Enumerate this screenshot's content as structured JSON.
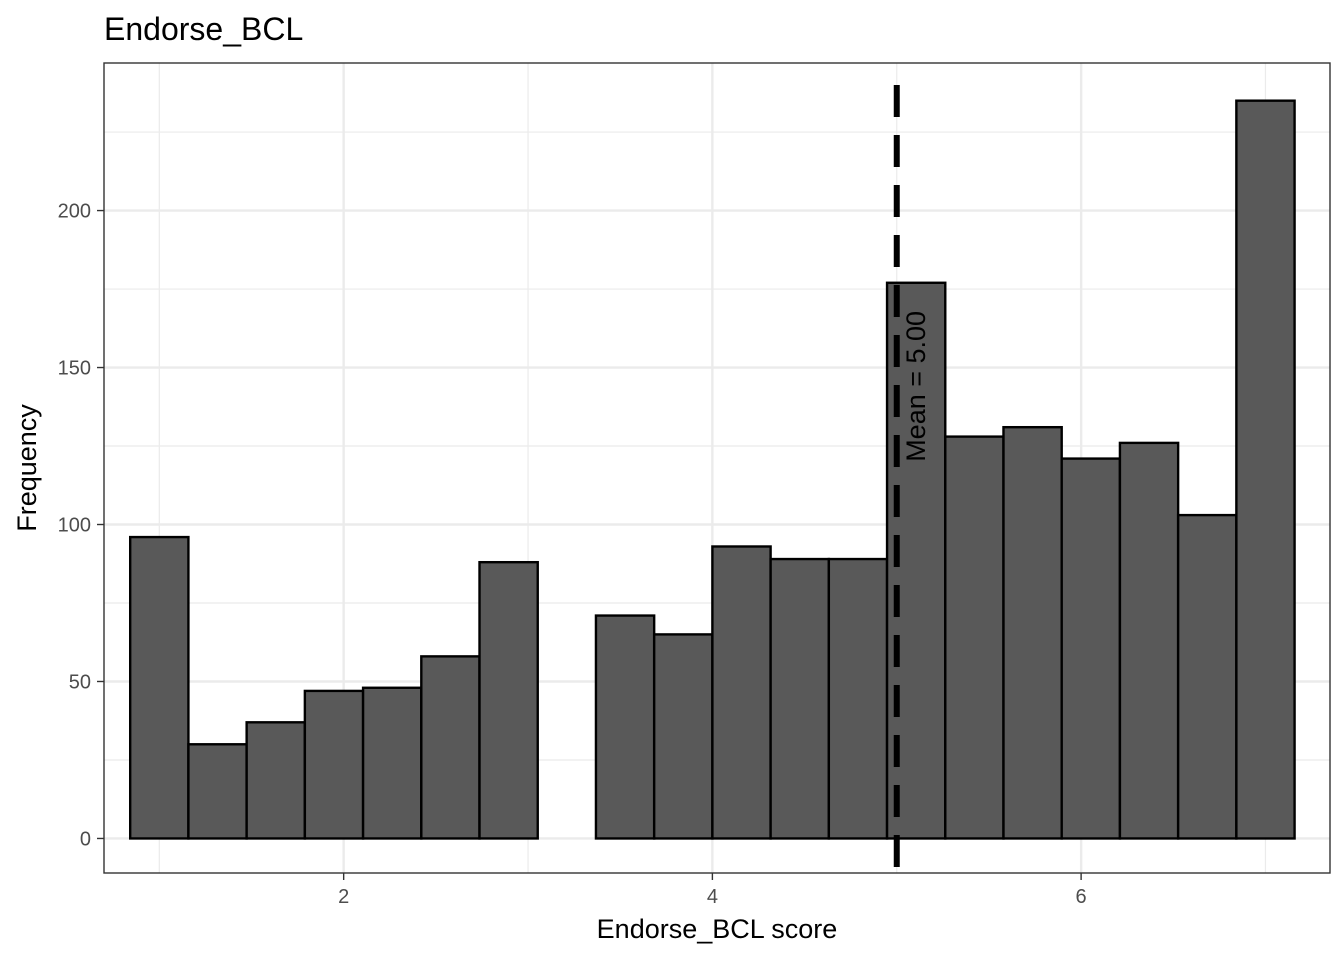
{
  "chart_data": {
    "type": "bar",
    "subtype": "histogram",
    "title": "Endorse_BCL",
    "xlabel": "Endorse_BCL score",
    "ylabel": "Frequency",
    "xlim": [
      0.7,
      7.35
    ],
    "ylim": [
      -11,
      247
    ],
    "x_ticks": [
      2,
      4,
      6
    ],
    "y_ticks": [
      0,
      50,
      100,
      150,
      200
    ],
    "grid": true,
    "bins": [
      {
        "x0": 0.8421,
        "x1": 1.1579,
        "count": 96
      },
      {
        "x0": 1.1579,
        "x1": 1.4737,
        "count": 30
      },
      {
        "x0": 1.4737,
        "x1": 1.7895,
        "count": 37
      },
      {
        "x0": 1.7895,
        "x1": 2.1053,
        "count": 47
      },
      {
        "x0": 2.1053,
        "x1": 2.4211,
        "count": 48
      },
      {
        "x0": 2.4211,
        "x1": 2.7368,
        "count": 58
      },
      {
        "x0": 2.7368,
        "x1": 3.0526,
        "count": 88
      },
      {
        "x0": 3.0526,
        "x1": 3.3684,
        "count": 0
      },
      {
        "x0": 3.3684,
        "x1": 3.6842,
        "count": 71
      },
      {
        "x0": 3.6842,
        "x1": 4.0,
        "count": 65
      },
      {
        "x0": 4.0,
        "x1": 4.3158,
        "count": 93
      },
      {
        "x0": 4.3158,
        "x1": 4.6316,
        "count": 89
      },
      {
        "x0": 4.6316,
        "x1": 4.9474,
        "count": 89
      },
      {
        "x0": 4.9474,
        "x1": 5.2632,
        "count": 177
      },
      {
        "x0": 5.2632,
        "x1": 5.5789,
        "count": 128
      },
      {
        "x0": 5.5789,
        "x1": 5.8947,
        "count": 131
      },
      {
        "x0": 5.8947,
        "x1": 6.2105,
        "count": 121
      },
      {
        "x0": 6.2105,
        "x1": 6.5263,
        "count": 126
      },
      {
        "x0": 6.5263,
        "x1": 6.8421,
        "count": 103
      },
      {
        "x0": 6.8421,
        "x1": 7.1579,
        "count": 235
      }
    ],
    "mean_line": {
      "x": 5.0,
      "style": "dashed",
      "label": "Mean = 5.00"
    },
    "colors": {
      "bar_fill": "#595959",
      "bar_stroke": "#000000",
      "grid": "#ebebeb",
      "panel_border": "#333333",
      "tick_text": "#4d4d4d"
    }
  }
}
